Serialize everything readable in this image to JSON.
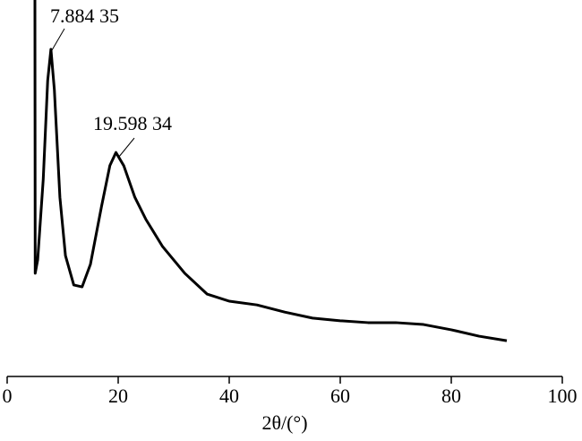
{
  "chart_data": {
    "type": "line",
    "xlabel": "2θ/(°)",
    "annotations": [
      "7.884 35",
      "19.598 34"
    ],
    "xlim": [
      0,
      100
    ],
    "xticks": [
      0,
      20,
      40,
      60,
      80,
      100
    ],
    "ylim": [
      0,
      100
    ],
    "series": [
      {
        "color": "#000000",
        "x": [
          5.0,
          5.05,
          5.5,
          6.5,
          7.3,
          7.884,
          8.5,
          9.5,
          10.5,
          12,
          13.5,
          15,
          17,
          18.5,
          19.598,
          21,
          23,
          25,
          28,
          32,
          36,
          40,
          45,
          50,
          55,
          60,
          65,
          70,
          75,
          80,
          85,
          90
        ],
        "values": [
          100,
          27.4,
          31.0,
          52.4,
          78.6,
          86.9,
          76.2,
          47.6,
          32.1,
          24.3,
          23.8,
          29.8,
          45.2,
          56.0,
          59.5,
          56.0,
          47.6,
          41.7,
          34.5,
          27.4,
          21.9,
          20.0,
          19.0,
          17.1,
          15.5,
          14.8,
          14.3,
          14.3,
          13.8,
          12.4,
          10.7,
          9.5
        ]
      }
    ]
  }
}
